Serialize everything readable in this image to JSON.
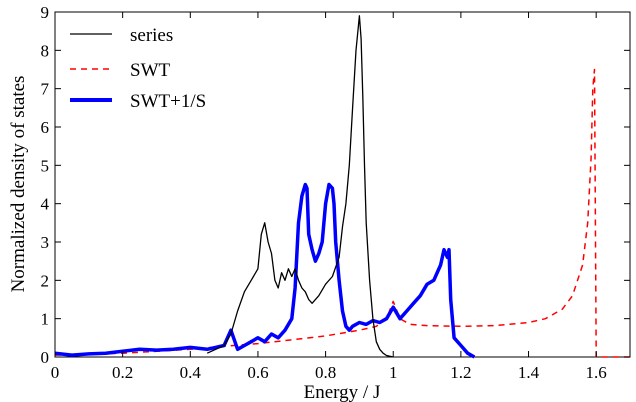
{
  "chart_data": {
    "type": "line",
    "xlabel": "Energy / J",
    "ylabel": "Normalized density of states",
    "xlim": [
      0,
      1.7
    ],
    "ylim": [
      0,
      9
    ],
    "xticks": [
      0,
      0.2,
      0.4,
      0.6,
      0.8,
      1,
      1.2,
      1.4,
      1.6
    ],
    "xtick_labels": [
      "0",
      "0.2",
      "0.4",
      "0.6",
      "0.8",
      "1",
      "1.2",
      "1.4",
      "1.6"
    ],
    "yticks": [
      0,
      1,
      2,
      3,
      4,
      5,
      6,
      7,
      8,
      9
    ],
    "ytick_labels": [
      "0",
      "1",
      "2",
      "3",
      "4",
      "5",
      "6",
      "7",
      "8",
      "9"
    ],
    "grid": false,
    "legend_position": "top-left",
    "series": [
      {
        "name": "series",
        "color": "#000000",
        "style": "solid",
        "x": [
          0.45,
          0.5,
          0.52,
          0.54,
          0.56,
          0.58,
          0.6,
          0.61,
          0.62,
          0.63,
          0.64,
          0.65,
          0.66,
          0.67,
          0.68,
          0.69,
          0.7,
          0.71,
          0.72,
          0.73,
          0.74,
          0.75,
          0.76,
          0.78,
          0.8,
          0.82,
          0.84,
          0.85,
          0.86,
          0.87,
          0.88,
          0.89,
          0.9,
          0.905,
          0.91,
          0.915,
          0.92,
          0.93,
          0.94,
          0.95,
          0.96,
          0.97,
          0.98,
          0.99,
          1.0
        ],
        "y": [
          0.1,
          0.3,
          0.6,
          1.2,
          1.7,
          2.0,
          2.3,
          3.2,
          3.5,
          3.0,
          2.7,
          2.0,
          1.8,
          2.2,
          2.0,
          2.3,
          2.1,
          2.3,
          2.0,
          1.8,
          1.7,
          1.5,
          1.4,
          1.6,
          1.9,
          2.1,
          2.6,
          3.4,
          4.0,
          5.0,
          6.5,
          8.0,
          8.9,
          8.3,
          6.8,
          5.0,
          3.5,
          2.0,
          1.0,
          0.4,
          0.2,
          0.1,
          0.04,
          0.02,
          0.0
        ]
      },
      {
        "name": "SWT",
        "color": "#ff0000",
        "style": "dashed",
        "x": [
          0,
          0.1,
          0.2,
          0.3,
          0.4,
          0.5,
          0.6,
          0.7,
          0.8,
          0.9,
          0.95,
          0.98,
          1.0,
          1.02,
          1.05,
          1.1,
          1.2,
          1.3,
          1.4,
          1.45,
          1.5,
          1.53,
          1.56,
          1.575,
          1.585,
          1.59,
          1.595,
          1.6,
          1.62,
          1.7
        ],
        "y": [
          0.05,
          0.07,
          0.1,
          0.15,
          0.2,
          0.28,
          0.35,
          0.45,
          0.55,
          0.7,
          0.8,
          1.0,
          1.45,
          1.0,
          0.85,
          0.82,
          0.8,
          0.82,
          0.9,
          1.0,
          1.25,
          1.6,
          2.4,
          3.5,
          5.2,
          7.0,
          7.5,
          0.0,
          0.0,
          0.0
        ]
      },
      {
        "name": "SWT+1/S",
        "color": "#0000ff",
        "style": "solid",
        "x": [
          0,
          0.05,
          0.1,
          0.15,
          0.2,
          0.25,
          0.3,
          0.35,
          0.4,
          0.45,
          0.5,
          0.52,
          0.54,
          0.56,
          0.58,
          0.6,
          0.62,
          0.64,
          0.66,
          0.68,
          0.7,
          0.71,
          0.72,
          0.73,
          0.74,
          0.745,
          0.75,
          0.76,
          0.77,
          0.78,
          0.79,
          0.8,
          0.81,
          0.82,
          0.825,
          0.83,
          0.84,
          0.85,
          0.86,
          0.87,
          0.88,
          0.9,
          0.92,
          0.94,
          0.96,
          0.98,
          1.0,
          1.02,
          1.04,
          1.06,
          1.08,
          1.1,
          1.12,
          1.14,
          1.15,
          1.16,
          1.165,
          1.17,
          1.18,
          1.2,
          1.22,
          1.24
        ],
        "y": [
          0.1,
          0.05,
          0.08,
          0.1,
          0.15,
          0.2,
          0.18,
          0.2,
          0.25,
          0.2,
          0.3,
          0.7,
          0.2,
          0.3,
          0.4,
          0.5,
          0.4,
          0.6,
          0.5,
          0.7,
          1.0,
          1.8,
          3.5,
          4.2,
          4.5,
          4.4,
          3.2,
          2.8,
          2.5,
          2.7,
          3.0,
          4.0,
          4.5,
          4.4,
          4.0,
          3.0,
          2.0,
          1.2,
          0.8,
          0.7,
          0.8,
          0.9,
          0.85,
          0.95,
          0.9,
          1.0,
          1.3,
          1.0,
          1.2,
          1.4,
          1.6,
          1.9,
          2.0,
          2.4,
          2.8,
          2.6,
          2.8,
          1.5,
          0.5,
          0.3,
          0.1,
          0.0
        ]
      }
    ]
  }
}
